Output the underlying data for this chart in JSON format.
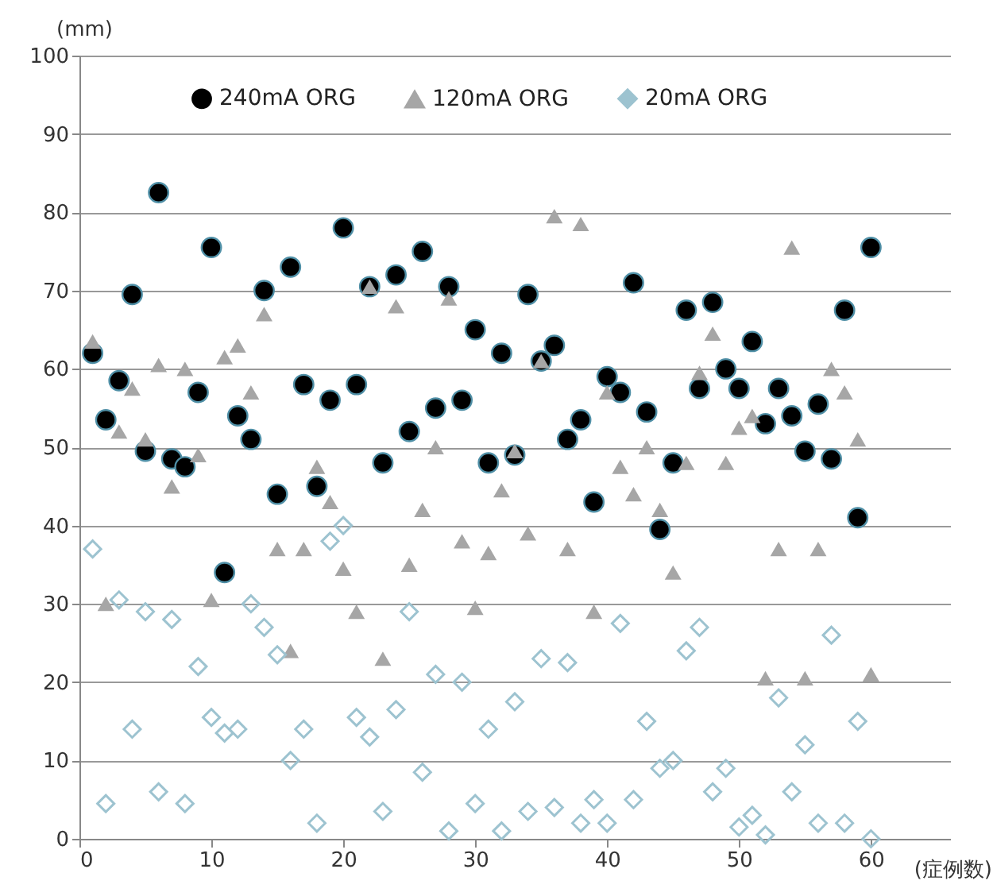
{
  "chart_data": {
    "type": "scatter",
    "ylabel": "(mm)",
    "xlabel": "(症例数)",
    "legend": "top",
    "grid": "y",
    "x": [
      1,
      2,
      3,
      4,
      5,
      6,
      7,
      8,
      9,
      10,
      11,
      12,
      13,
      14,
      15,
      16,
      17,
      18,
      19,
      20,
      21,
      22,
      23,
      24,
      25,
      26,
      27,
      28,
      29,
      30,
      31,
      32,
      33,
      34,
      35,
      36,
      37,
      38,
      39,
      40,
      41,
      42,
      43,
      44,
      45,
      46,
      47,
      48,
      49,
      50,
      51,
      52,
      53,
      54,
      55,
      56,
      57,
      58,
      59,
      60
    ],
    "xlim": [
      0,
      66
    ],
    "xticks": [
      0,
      10,
      20,
      30,
      40,
      50,
      60
    ],
    "ylim": [
      0,
      100
    ],
    "yticks": [
      0,
      10,
      20,
      30,
      40,
      50,
      60,
      70,
      80,
      90,
      100
    ],
    "series": [
      {
        "name": "240mA ORG",
        "color": "#000000",
        "marker": "circle",
        "values": [
          62,
          53.5,
          58.5,
          69.5,
          49.5,
          82.5,
          48.5,
          47.5,
          57,
          75.5,
          34,
          54,
          51,
          70,
          44,
          73,
          58,
          45,
          56,
          78,
          58,
          70.5,
          48,
          72,
          52,
          75,
          55,
          70.5,
          56,
          65,
          48,
          62,
          49,
          69.5,
          61,
          63,
          51,
          53.5,
          43,
          59,
          57,
          71,
          54.5,
          39.5,
          48,
          67.5,
          57.5,
          68.5,
          60,
          57.5,
          63.5,
          53,
          57.5,
          54,
          49.5,
          55.5,
          48.5,
          67.5,
          41,
          75.5
        ]
      },
      {
        "name": "120mA ORG",
        "color": "#a6a6a6",
        "marker": "triangle",
        "values": [
          63.5,
          30,
          52,
          57.5,
          51,
          60.5,
          45,
          60,
          49,
          30.5,
          61.5,
          63,
          57,
          67,
          37,
          24,
          37,
          47.5,
          43,
          34.5,
          29,
          70.5,
          23,
          68,
          35,
          42,
          50,
          69,
          38,
          29.5,
          36.5,
          44.5,
          49.5,
          39,
          61,
          79.5,
          37,
          78.5,
          29,
          57,
          47.5,
          44,
          50,
          42,
          34,
          48,
          59.5,
          64.5,
          48,
          52.5,
          54,
          20.5,
          37,
          75.5,
          20.5,
          37,
          60,
          57,
          51,
          21
        ]
      },
      {
        "name": "20mA ORG",
        "color": "#9dc3d0",
        "marker": "diamond",
        "values": [
          37,
          4.5,
          30.5,
          14,
          29,
          6,
          28,
          4.5,
          22,
          15.5,
          13.5,
          14,
          30,
          27,
          23.5,
          10,
          14,
          2,
          38,
          40,
          15.5,
          13,
          3.5,
          16.5,
          29,
          8.5,
          21,
          1,
          20,
          4.5,
          14,
          1,
          17.5,
          3.5,
          23,
          4,
          22.5,
          2,
          5,
          2,
          27.5,
          5,
          15,
          9,
          10,
          24,
          27,
          6,
          9,
          1.5,
          3,
          0.5,
          18,
          6,
          12,
          2,
          26,
          2,
          15,
          0
        ]
      }
    ]
  }
}
